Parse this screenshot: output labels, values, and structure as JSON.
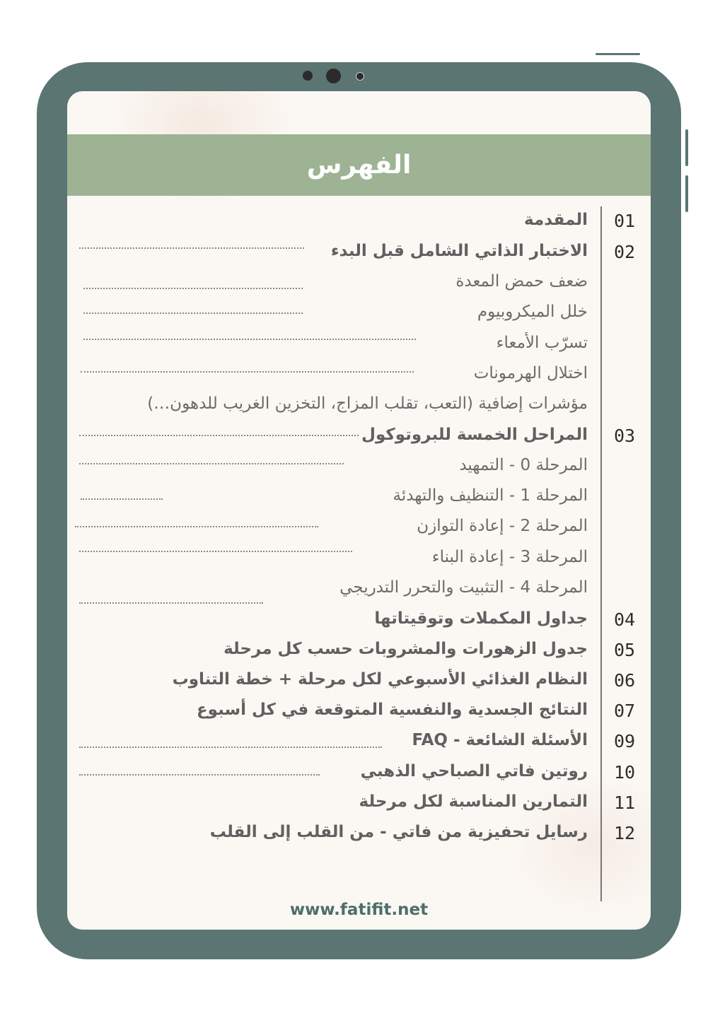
{
  "title": "الفهرس",
  "items": [
    {
      "number": "01",
      "label": "المقدمة",
      "main": true
    },
    {
      "number": "02",
      "label": "الاختبار الذاتي الشامل قبل البدء",
      "main": true
    },
    {
      "number": "",
      "label": "ضعف حمض المعدة",
      "main": false
    },
    {
      "number": "",
      "label": "خلل الميكروبيوم",
      "main": false
    },
    {
      "number": "",
      "label": "تسرّب الأمعاء",
      "main": false
    },
    {
      "number": "",
      "label": "اختلال الهرمونات",
      "main": false
    },
    {
      "number": "",
      "label": "مؤشرات إضافية (التعب، تقلب المزاج، التخزين الغريب للدهون…)",
      "main": false
    },
    {
      "number": "03",
      "label": "المراحل الخمسة للبروتوكول",
      "main": true
    },
    {
      "number": "",
      "label": "المرحلة 0 - التمهيد",
      "main": false
    },
    {
      "number": "",
      "label": "المرحلة 1 - التنظيف والتهدئة",
      "main": false
    },
    {
      "number": "",
      "label": "المرحلة 2 - إعادة التوازن",
      "main": false
    },
    {
      "number": "",
      "label": "المرحلة 3 - إعادة البناء",
      "main": false
    },
    {
      "number": "",
      "label": "المرحلة 4 - التثبيت والتحرر التدريجي",
      "main": false
    },
    {
      "number": "04",
      "label": "جداول المكملات وتوقيتاتها",
      "main": true
    },
    {
      "number": "05",
      "label": "جدول الزهورات والمشروبات حسب كل مرحلة",
      "main": true
    },
    {
      "number": "06",
      "label": "النظام الغذائي الأسبوعي لكل مرحلة + خطة التناوب",
      "main": true
    },
    {
      "number": "07",
      "label": "النتائج الجسدية والنفسية المتوقعة في كل أسبوع",
      "main": true
    },
    {
      "number": "09",
      "label": "الأسئلة الشائعة - FAQ",
      "main": true
    },
    {
      "number": "10",
      "label": "روتين فاتي الصباحي الذهبي",
      "main": true
    },
    {
      "number": "11",
      "label": "التمارين المناسبة لكل مرحلة",
      "main": true
    },
    {
      "number": "12",
      "label": "رسايل تحفيزية من فاتي - من القلب إلى القلب",
      "main": true
    }
  ],
  "footer": "www.fatifit.net",
  "colors": {
    "frame": "#5a7572",
    "header": "#9db393",
    "screen": "#fbf7f3",
    "text": "#6b6b6b"
  }
}
